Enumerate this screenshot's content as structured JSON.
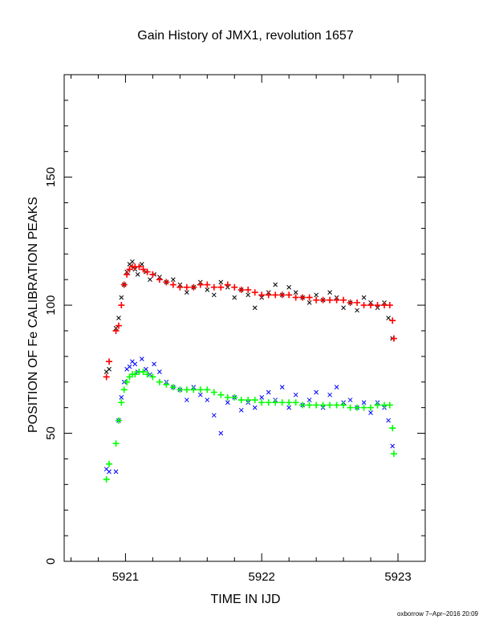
{
  "chart_data": {
    "type": "scatter",
    "title": "Gain History of JMX1, revolution 1657",
    "xlabel": "TIME IN IJD",
    "ylabel": "POSITION OF Fe CALIBRATION PEAKS",
    "xlim": [
      5920.55,
      5923.2
    ],
    "ylim": [
      0,
      190
    ],
    "xticks": [
      5921,
      5922,
      5923
    ],
    "xtick_labels": [
      "5921",
      "5922",
      "5923"
    ],
    "yticks": [
      0,
      50,
      100,
      150
    ],
    "ytick_labels": [
      "0",
      "50",
      "100",
      "150"
    ],
    "grid": false,
    "series": [
      {
        "marker": "x",
        "color": "#000000",
        "x": [
          5920.86,
          5920.88,
          5920.93,
          5920.95,
          5920.97,
          5920.99,
          5921.01,
          5921.03,
          5921.05,
          5921.07,
          5921.09,
          5921.12,
          5921.15,
          5921.18,
          5921.21,
          5921.25,
          5921.3,
          5921.35,
          5921.4,
          5921.45,
          5921.5,
          5921.55,
          5921.6,
          5921.65,
          5921.7,
          5921.75,
          5921.8,
          5921.85,
          5921.9,
          5921.95,
          5922.0,
          5922.05,
          5922.1,
          5922.15,
          5922.2,
          5922.25,
          5922.3,
          5922.35,
          5922.4,
          5922.45,
          5922.5,
          5922.55,
          5922.6,
          5922.65,
          5922.7,
          5922.75,
          5922.8,
          5922.85,
          5922.9,
          5922.93,
          5922.96
        ],
        "y": [
          74,
          75,
          91,
          95,
          103,
          108,
          113,
          116,
          117,
          114,
          112,
          116,
          113,
          110,
          112,
          111,
          109,
          110,
          108,
          105,
          107,
          109,
          106,
          104,
          109,
          107,
          103,
          106,
          104,
          99,
          103,
          105,
          108,
          104,
          107,
          105,
          103,
          101,
          104,
          102,
          105,
          103,
          99,
          101,
          98,
          103,
          101,
          99,
          101,
          95,
          87
        ]
      },
      {
        "marker": "+",
        "color": "#ff0000",
        "x": [
          5920.86,
          5920.88,
          5920.93,
          5920.95,
          5920.97,
          5920.99,
          5921.01,
          5921.03,
          5921.05,
          5921.07,
          5921.1,
          5921.13,
          5921.16,
          5921.2,
          5921.25,
          5921.3,
          5921.35,
          5921.4,
          5921.45,
          5921.5,
          5921.55,
          5921.6,
          5921.65,
          5921.7,
          5921.75,
          5921.8,
          5921.85,
          5921.9,
          5921.95,
          5922.0,
          5922.05,
          5922.1,
          5922.15,
          5922.2,
          5922.25,
          5922.3,
          5922.35,
          5922.4,
          5922.45,
          5922.5,
          5922.55,
          5922.6,
          5922.65,
          5922.7,
          5922.75,
          5922.8,
          5922.85,
          5922.9,
          5922.94,
          5922.96,
          5922.97
        ],
        "y": [
          72,
          78,
          90,
          92,
          100,
          108,
          112,
          114,
          115,
          115,
          115,
          114,
          113,
          112,
          110,
          109,
          108,
          107,
          107,
          107,
          108,
          108,
          107,
          107,
          108,
          107,
          106,
          106,
          105,
          104,
          104,
          104,
          104,
          104,
          103,
          103,
          103,
          102,
          102,
          102,
          102,
          102,
          101,
          101,
          100,
          100,
          100,
          100,
          100,
          94,
          87
        ]
      },
      {
        "marker": "x",
        "color": "#0000ff",
        "x": [
          5920.86,
          5920.88,
          5920.93,
          5920.95,
          5920.97,
          5920.99,
          5921.01,
          5921.03,
          5921.05,
          5921.07,
          5921.09,
          5921.12,
          5921.15,
          5921.18,
          5921.21,
          5921.25,
          5921.3,
          5921.35,
          5921.4,
          5921.45,
          5921.5,
          5921.55,
          5921.6,
          5921.65,
          5921.7,
          5921.75,
          5921.8,
          5921.85,
          5921.9,
          5921.95,
          5922.0,
          5922.05,
          5922.1,
          5922.15,
          5922.2,
          5922.25,
          5922.3,
          5922.35,
          5922.4,
          5922.45,
          5922.5,
          5922.55,
          5922.6,
          5922.65,
          5922.7,
          5922.75,
          5922.8,
          5922.85,
          5922.9,
          5922.93,
          5922.96
        ],
        "y": [
          36,
          35,
          35,
          55,
          64,
          70,
          75,
          76,
          78,
          77,
          74,
          79,
          75,
          73,
          77,
          74,
          70,
          68,
          67,
          63,
          68,
          65,
          63,
          57,
          50,
          62,
          64,
          59,
          62,
          60,
          64,
          66,
          63,
          68,
          60,
          65,
          61,
          63,
          66,
          60,
          65,
          68,
          62,
          63,
          60,
          62,
          58,
          62,
          60,
          55,
          45
        ]
      },
      {
        "marker": "+",
        "color": "#00ff00",
        "x": [
          5920.86,
          5920.88,
          5920.93,
          5920.95,
          5920.97,
          5920.99,
          5921.01,
          5921.03,
          5921.05,
          5921.07,
          5921.1,
          5921.13,
          5921.16,
          5921.2,
          5921.25,
          5921.3,
          5921.35,
          5921.4,
          5921.45,
          5921.5,
          5921.55,
          5921.6,
          5921.65,
          5921.7,
          5921.75,
          5921.8,
          5921.85,
          5921.9,
          5921.95,
          5922.0,
          5922.05,
          5922.1,
          5922.15,
          5922.2,
          5922.25,
          5922.3,
          5922.35,
          5922.4,
          5922.45,
          5922.5,
          5922.55,
          5922.6,
          5922.65,
          5922.7,
          5922.75,
          5922.8,
          5922.85,
          5922.9,
          5922.94,
          5922.96,
          5922.97
        ],
        "y": [
          32,
          38,
          46,
          55,
          62,
          67,
          70,
          72,
          73,
          73,
          74,
          74,
          73,
          72,
          70,
          69,
          68,
          67,
          67,
          67,
          67,
          67,
          66,
          65,
          64,
          64,
          63,
          63,
          63,
          62,
          62,
          62,
          62,
          62,
          62,
          61,
          61,
          61,
          61,
          61,
          61,
          61,
          60,
          60,
          60,
          60,
          61,
          61,
          61,
          52,
          42
        ]
      }
    ]
  },
  "credit": "oxborrow  7–Apr–2016 20:09"
}
